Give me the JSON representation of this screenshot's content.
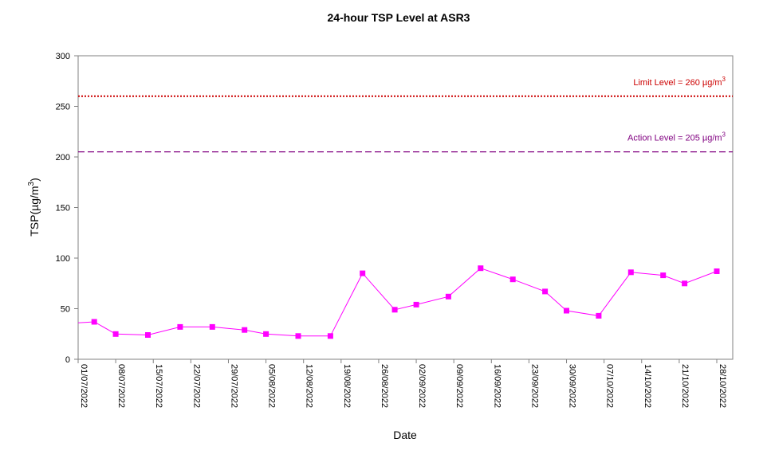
{
  "chart_data": {
    "type": "line",
    "title": "24-hour TSP Level at ASR3",
    "xlabel": "Date",
    "ylabel": "TSP(µg/m3)",
    "ylabel_parts": {
      "text": "TSP(µg/m",
      "sup": "3",
      "tail": ")"
    },
    "ylim": [
      0,
      300
    ],
    "yticks": [
      "0",
      "50",
      "100",
      "150",
      "200",
      "250",
      "300"
    ],
    "x_tick_labels": [
      "01/07/2022",
      "08/07/2022",
      "15/07/2022",
      "22/07/2022",
      "29/07/2022",
      "05/08/2022",
      "12/08/2022",
      "19/08/2022",
      "26/08/2022",
      "02/09/2022",
      "09/09/2022",
      "16/09/2022",
      "23/09/2022",
      "30/09/2022",
      "07/10/2022",
      "14/10/2022",
      "21/10/2022",
      "28/10/2022"
    ],
    "xlim": [
      "2022-07-01",
      "2022-10-28"
    ],
    "grid": false,
    "reference_lines": [
      {
        "name": "Limit Level",
        "label": "Limit Level = 260 µg/m",
        "sup": "3",
        "value": 260,
        "color": "#cc0000",
        "style": "dotted"
      },
      {
        "name": "Action Level",
        "label": "Action Level = 205 µg/m",
        "sup": "3",
        "value": 205,
        "color": "#800080",
        "style": "dashed"
      }
    ],
    "series": [
      {
        "color": "#ff00ff",
        "points": [
          {
            "x": "2022-07-01",
            "y": 36,
            "marker": false
          },
          {
            "x": "2022-07-04",
            "y": 37
          },
          {
            "x": "2022-07-08",
            "y": 25
          },
          {
            "x": "2022-07-14",
            "y": 24
          },
          {
            "x": "2022-07-20",
            "y": 32
          },
          {
            "x": "2022-07-26",
            "y": 32
          },
          {
            "x": "2022-08-01",
            "y": 29
          },
          {
            "x": "2022-08-05",
            "y": 25
          },
          {
            "x": "2022-08-11",
            "y": 23
          },
          {
            "x": "2022-08-17",
            "y": 23
          },
          {
            "x": "2022-08-23",
            "y": 85
          },
          {
            "x": "2022-08-29",
            "y": 49
          },
          {
            "x": "2022-09-02",
            "y": 54
          },
          {
            "x": "2022-09-08",
            "y": 62
          },
          {
            "x": "2022-09-14",
            "y": 90
          },
          {
            "x": "2022-09-20",
            "y": 79
          },
          {
            "x": "2022-09-26",
            "y": 67
          },
          {
            "x": "2022-09-30",
            "y": 48
          },
          {
            "x": "2022-10-06",
            "y": 43
          },
          {
            "x": "2022-10-12",
            "y": 86
          },
          {
            "x": "2022-10-18",
            "y": 83
          },
          {
            "x": "2022-10-22",
            "y": 75
          },
          {
            "x": "2022-10-28",
            "y": 87
          }
        ]
      }
    ]
  }
}
